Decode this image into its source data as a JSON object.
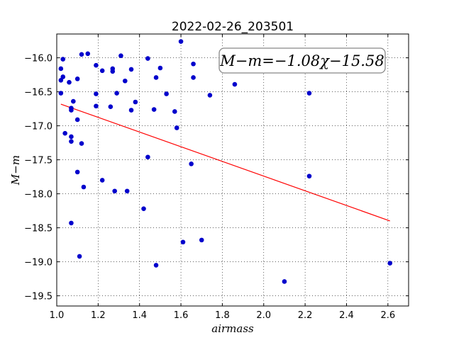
{
  "chart_data": {
    "type": "scatter",
    "title": "2022-02-26_203501",
    "xlabel": "airmass",
    "ylabel": "M−m",
    "xlim": [
      1.0,
      2.7
    ],
    "ylim": [
      -19.65,
      -15.65
    ],
    "x_ticks": [
      1.0,
      1.2,
      1.4,
      1.6,
      1.8,
      2.0,
      2.2,
      2.4,
      2.6
    ],
    "x_tick_labels": [
      "1.0",
      "1.2",
      "1.4",
      "1.6",
      "1.8",
      "2.0",
      "2.2",
      "2.4",
      "2.6"
    ],
    "y_ticks": [
      -16.0,
      -16.5,
      -17.0,
      -17.5,
      -18.0,
      -18.5,
      -19.0,
      -19.5
    ],
    "y_tick_labels": [
      "−16.0",
      "−16.5",
      "−17.0",
      "−17.5",
      "−18.0",
      "−18.5",
      "−19.0",
      "−19.5"
    ],
    "grid": true,
    "annotation": "M−m=−1.08χ−15.58",
    "point_color": "#0000cc",
    "fit_color": "#ff0000",
    "fit_line": {
      "slope": -1.08,
      "intercept": -15.58,
      "x_range": [
        1.02,
        2.61
      ]
    },
    "points": [
      {
        "x": 1.02,
        "y": -16.16
      },
      {
        "x": 1.02,
        "y": -16.33
      },
      {
        "x": 1.03,
        "y": -16.02
      },
      {
        "x": 1.03,
        "y": -16.28
      },
      {
        "x": 1.02,
        "y": -16.52
      },
      {
        "x": 1.04,
        "y": -17.11
      },
      {
        "x": 1.06,
        "y": -16.36
      },
      {
        "x": 1.07,
        "y": -16.74
      },
      {
        "x": 1.07,
        "y": -16.77
      },
      {
        "x": 1.08,
        "y": -16.64
      },
      {
        "x": 1.07,
        "y": -17.16
      },
      {
        "x": 1.07,
        "y": -17.23
      },
      {
        "x": 1.07,
        "y": -18.43
      },
      {
        "x": 1.1,
        "y": -16.31
      },
      {
        "x": 1.1,
        "y": -16.91
      },
      {
        "x": 1.1,
        "y": -17.68
      },
      {
        "x": 1.11,
        "y": -18.92
      },
      {
        "x": 1.12,
        "y": -15.95
      },
      {
        "x": 1.12,
        "y": -17.26
      },
      {
        "x": 1.13,
        "y": -17.9
      },
      {
        "x": 1.15,
        "y": -15.94
      },
      {
        "x": 1.19,
        "y": -16.11
      },
      {
        "x": 1.19,
        "y": -16.53
      },
      {
        "x": 1.19,
        "y": -16.71
      },
      {
        "x": 1.22,
        "y": -16.19
      },
      {
        "x": 1.22,
        "y": -17.8
      },
      {
        "x": 1.26,
        "y": -16.72
      },
      {
        "x": 1.27,
        "y": -16.16
      },
      {
        "x": 1.27,
        "y": -16.2
      },
      {
        "x": 1.28,
        "y": -17.96
      },
      {
        "x": 1.29,
        "y": -16.52
      },
      {
        "x": 1.31,
        "y": -15.97
      },
      {
        "x": 1.33,
        "y": -16.34
      },
      {
        "x": 1.34,
        "y": -17.96
      },
      {
        "x": 1.36,
        "y": -16.17
      },
      {
        "x": 1.36,
        "y": -16.77
      },
      {
        "x": 1.38,
        "y": -16.65
      },
      {
        "x": 1.42,
        "y": -18.22
      },
      {
        "x": 1.44,
        "y": -16.01
      },
      {
        "x": 1.44,
        "y": -17.46
      },
      {
        "x": 1.47,
        "y": -16.76
      },
      {
        "x": 1.48,
        "y": -16.29
      },
      {
        "x": 1.48,
        "y": -19.05
      },
      {
        "x": 1.5,
        "y": -16.15
      },
      {
        "x": 1.53,
        "y": -16.53
      },
      {
        "x": 1.57,
        "y": -16.79
      },
      {
        "x": 1.58,
        "y": -17.03
      },
      {
        "x": 1.6,
        "y": -15.76
      },
      {
        "x": 1.61,
        "y": -18.71
      },
      {
        "x": 1.65,
        "y": -17.56
      },
      {
        "x": 1.66,
        "y": -16.09
      },
      {
        "x": 1.66,
        "y": -16.29
      },
      {
        "x": 1.7,
        "y": -18.68
      },
      {
        "x": 1.74,
        "y": -16.55
      },
      {
        "x": 1.8,
        "y": -16.18
      },
      {
        "x": 1.86,
        "y": -16.39
      },
      {
        "x": 2.1,
        "y": -19.29
      },
      {
        "x": 2.22,
        "y": -16.52
      },
      {
        "x": 2.22,
        "y": -17.74
      },
      {
        "x": 2.61,
        "y": -19.02
      }
    ]
  }
}
